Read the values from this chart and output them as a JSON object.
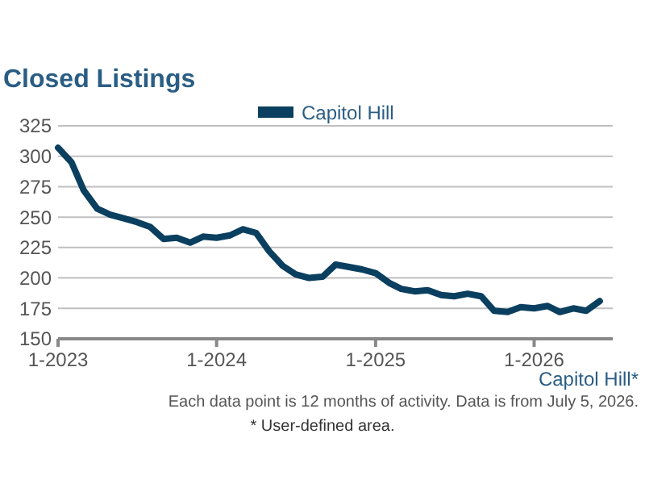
{
  "chart_data": {
    "type": "line",
    "title": "Closed Listings",
    "x": [
      "2023-01",
      "2023-02",
      "2023-03",
      "2023-04",
      "2023-05",
      "2023-06",
      "2023-07",
      "2023-08",
      "2023-09",
      "2023-10",
      "2023-11",
      "2023-12",
      "2024-01",
      "2024-02",
      "2024-03",
      "2024-04",
      "2024-05",
      "2024-06",
      "2024-07",
      "2024-08",
      "2024-09",
      "2024-10",
      "2024-11",
      "2024-12",
      "2025-01",
      "2025-02",
      "2025-03",
      "2025-04",
      "2025-05",
      "2025-06",
      "2025-07",
      "2025-08",
      "2025-09",
      "2025-10",
      "2025-11",
      "2025-12",
      "2026-01",
      "2026-02",
      "2026-03",
      "2026-04",
      "2026-05",
      "2026-06"
    ],
    "series": [
      {
        "name": "Capitol Hill",
        "color": "#0b3f5f",
        "values": [
          307,
          295,
          272,
          257,
          252,
          249,
          246,
          242,
          232,
          233,
          229,
          234,
          233,
          235,
          240,
          237,
          222,
          210,
          203,
          200,
          201,
          211,
          209,
          207,
          204,
          196,
          191,
          189,
          190,
          186,
          185,
          187,
          185,
          173,
          172,
          176,
          175,
          177,
          172,
          175,
          173,
          181
        ]
      }
    ],
    "xlim": [
      "2023-01",
      "2026-07"
    ],
    "xticks": [
      {
        "value": "2023-01",
        "label": "1-2023"
      },
      {
        "value": "2024-01",
        "label": "1-2024"
      },
      {
        "value": "2025-01",
        "label": "1-2025"
      },
      {
        "value": "2026-01",
        "label": "1-2026"
      }
    ],
    "ylim": [
      150,
      325
    ],
    "yticks": [
      150,
      175,
      200,
      225,
      250,
      275,
      300,
      325
    ],
    "grid": "y",
    "legend": "top",
    "marker": "none",
    "line_style": "solid",
    "annotations": [
      "Capitol Hill*",
      "Each data point is 12 months of activity. Data is from July 5, 2026.",
      "* User-defined area."
    ]
  }
}
